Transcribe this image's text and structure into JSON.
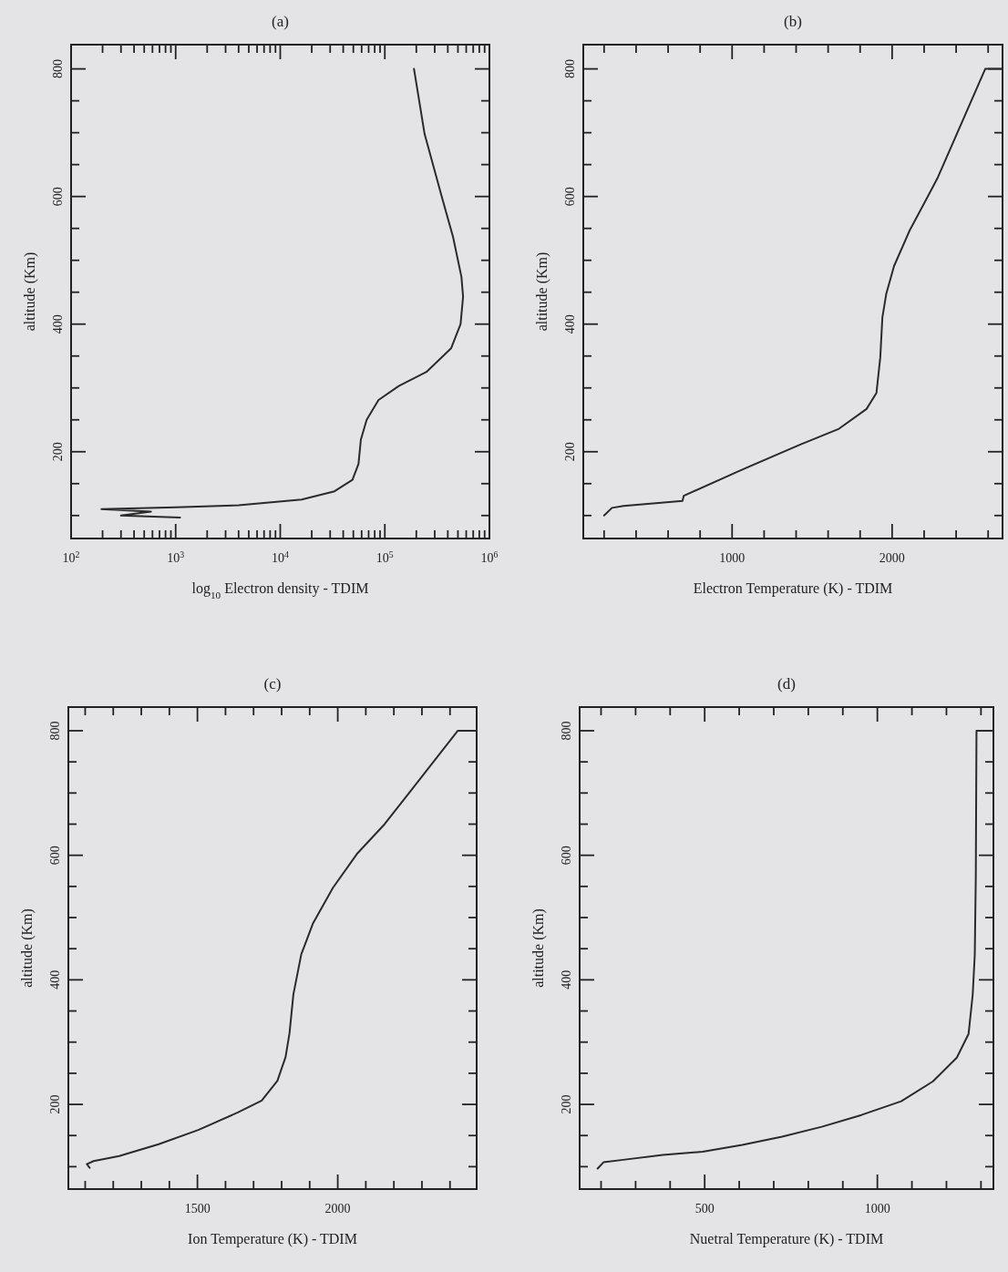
{
  "chart_data": [
    {
      "type": "line",
      "title": "(a)",
      "xlabel": "log$_{10}$ Electron density - TDIM",
      "ylabel": "altitude (Km)",
      "log": "x",
      "grid": false,
      "xlim": [
        100,
        1000000
      ],
      "ylim": [
        64,
        838
      ],
      "xticks": [
        {
          "value": 100,
          "label": "10$^{2}$"
        },
        {
          "value": 200,
          "label": null
        },
        {
          "value": 300,
          "label": null
        },
        {
          "value": 400,
          "label": null
        },
        {
          "value": 500,
          "label": null
        },
        {
          "value": 600,
          "label": null
        },
        {
          "value": 700,
          "label": null
        },
        {
          "value": 800,
          "label": null
        },
        {
          "value": 900,
          "label": null
        },
        {
          "value": 1000,
          "label": "10$^{3}$"
        },
        {
          "value": 2000,
          "label": null
        },
        {
          "value": 3000,
          "label": null
        },
        {
          "value": 4000,
          "label": null
        },
        {
          "value": 5000,
          "label": null
        },
        {
          "value": 6000,
          "label": null
        },
        {
          "value": 7000,
          "label": null
        },
        {
          "value": 8000,
          "label": null
        },
        {
          "value": 9000,
          "label": null
        },
        {
          "value": 10000,
          "label": "10$^{4}$"
        },
        {
          "value": 20000,
          "label": null
        },
        {
          "value": 30000,
          "label": null
        },
        {
          "value": 40000,
          "label": null
        },
        {
          "value": 50000,
          "label": null
        },
        {
          "value": 60000,
          "label": null
        },
        {
          "value": 70000,
          "label": null
        },
        {
          "value": 80000,
          "label": null
        },
        {
          "value": 90000,
          "label": null
        },
        {
          "value": 100000,
          "label": "10$^{5}$"
        },
        {
          "value": 200000,
          "label": null
        },
        {
          "value": 300000,
          "label": null
        },
        {
          "value": 400000,
          "label": null
        },
        {
          "value": 500000,
          "label": null
        },
        {
          "value": 600000,
          "label": null
        },
        {
          "value": 700000,
          "label": null
        },
        {
          "value": 800000,
          "label": null
        },
        {
          "value": 900000,
          "label": null
        },
        {
          "value": 1000000,
          "label": "10$^{6}$"
        }
      ],
      "yticks": [
        {
          "value": 100,
          "label": null
        },
        {
          "value": 150,
          "label": null
        },
        200,
        {
          "value": 250,
          "label": null
        },
        {
          "value": 300,
          "label": null
        },
        {
          "value": 350,
          "label": null
        },
        400,
        {
          "value": 450,
          "label": null
        },
        {
          "value": 500,
          "label": null
        },
        {
          "value": 550,
          "label": null
        },
        600,
        {
          "value": 650,
          "label": null
        },
        {
          "value": 700,
          "label": null
        },
        {
          "value": 750,
          "label": null
        },
        800
      ],
      "series": [
        {
          "color": "#2a2a2a",
          "x": [
            190000,
            240000,
            350000,
            450000,
            540000,
            560000,
            530000,
            430000,
            250000,
            136000,
            87000,
            67000,
            59000,
            56000,
            49000,
            33000,
            16000,
            4000,
            1000,
            195,
            580,
            300,
            1100
          ],
          "values": [
            800,
            698,
            600,
            536,
            474,
            443,
            400,
            362,
            325,
            303,
            281,
            250,
            219,
            181,
            156,
            138,
            125,
            116,
            113,
            110,
            106,
            100,
            97
          ]
        }
      ]
    },
    {
      "type": "line",
      "title": "(b)",
      "xlabel": "Electron Temperature (K) - TDIM",
      "ylabel": "altitude (Km)",
      "grid": false,
      "xlim": [
        70,
        2690
      ],
      "ylim": [
        64,
        838
      ],
      "xticks": [
        {
          "value": 200,
          "label": null
        },
        {
          "value": 400,
          "label": null
        },
        {
          "value": 600,
          "label": null
        },
        {
          "value": 800,
          "label": null
        },
        1000,
        {
          "value": 1200,
          "label": null
        },
        {
          "value": 1400,
          "label": null
        },
        {
          "value": 1600,
          "label": null
        },
        {
          "value": 1800,
          "label": null
        },
        2000,
        {
          "value": 2200,
          "label": null
        },
        {
          "value": 2400,
          "label": null
        },
        {
          "value": 2600,
          "label": null
        }
      ],
      "yticks": [
        {
          "value": 100,
          "label": null
        },
        {
          "value": 150,
          "label": null
        },
        200,
        {
          "value": 250,
          "label": null
        },
        {
          "value": 300,
          "label": null
        },
        {
          "value": 350,
          "label": null
        },
        400,
        {
          "value": 450,
          "label": null
        },
        {
          "value": 500,
          "label": null
        },
        {
          "value": 550,
          "label": null
        },
        600,
        {
          "value": 650,
          "label": null
        },
        {
          "value": 700,
          "label": null
        },
        {
          "value": 750,
          "label": null
        },
        800
      ],
      "series": [
        {
          "color": "#2a2a2a",
          "x": [
            200,
            249,
            322,
            690,
            698,
            1054,
            1423,
            1668,
            1840,
            1902,
            1926,
            1939,
            1963,
            2012,
            2110,
            2282,
            2582,
            2690
          ],
          "values": [
            100,
            112,
            115,
            123,
            131,
            171,
            211,
            236,
            267,
            292,
            348,
            410,
            447,
            491,
            547,
            628,
            800,
            800
          ]
        }
      ]
    },
    {
      "type": "line",
      "title": "(c)",
      "xlabel": "Ion Temperature (K) - TDIM",
      "ylabel": "altitude (Km)",
      "grid": false,
      "xlim": [
        1040,
        2495
      ],
      "ylim": [
        64,
        838
      ],
      "xticks": [
        {
          "value": 1100,
          "label": null
        },
        {
          "value": 1200,
          "label": null
        },
        {
          "value": 1300,
          "label": null
        },
        {
          "value": 1400,
          "label": null
        },
        1500,
        {
          "value": 1600,
          "label": null
        },
        {
          "value": 1700,
          "label": null
        },
        {
          "value": 1800,
          "label": null
        },
        {
          "value": 1900,
          "label": null
        },
        2000,
        {
          "value": 2100,
          "label": null
        },
        {
          "value": 2200,
          "label": null
        },
        {
          "value": 2300,
          "label": null
        },
        {
          "value": 2400,
          "label": null
        }
      ],
      "yticks": [
        {
          "value": 100,
          "label": null
        },
        {
          "value": 150,
          "label": null
        },
        200,
        {
          "value": 250,
          "label": null
        },
        {
          "value": 300,
          "label": null
        },
        {
          "value": 350,
          "label": null
        },
        400,
        {
          "value": 450,
          "label": null
        },
        {
          "value": 500,
          "label": null
        },
        {
          "value": 550,
          "label": null
        },
        600,
        {
          "value": 650,
          "label": null
        },
        {
          "value": 700,
          "label": null
        },
        {
          "value": 750,
          "label": null
        },
        800
      ],
      "series": [
        {
          "color": "#2a2a2a",
          "x": [
            1116,
            1106,
            1130,
            1221,
            1362,
            1503,
            1644,
            1729,
            1785,
            1814,
            1828,
            1842,
            1870,
            1912,
            1983,
            2068,
            2167,
            2266,
            2428,
            2495
          ],
          "values": [
            98,
            104,
            109,
            117,
            136,
            159,
            187,
            206,
            238,
            276,
            314,
            377,
            441,
            491,
            548,
            602,
            650,
            707,
            800,
            800
          ]
        }
      ]
    },
    {
      "type": "line",
      "title": "(d)",
      "xlabel": "Nuetral Temperature (K) - TDIM",
      "ylabel": "altitude (Km)",
      "grid": false,
      "xlim": [
        138,
        1336
      ],
      "ylim": [
        64,
        838
      ],
      "xticks": [
        {
          "value": 200,
          "label": null
        },
        {
          "value": 300,
          "label": null
        },
        {
          "value": 400,
          "label": null
        },
        500,
        {
          "value": 600,
          "label": null
        },
        {
          "value": 700,
          "label": null
        },
        {
          "value": 800,
          "label": null
        },
        {
          "value": 900,
          "label": null
        },
        1000,
        {
          "value": 1100,
          "label": null
        },
        {
          "value": 1200,
          "label": null
        },
        {
          "value": 1300,
          "label": null
        }
      ],
      "yticks": [
        {
          "value": 100,
          "label": null
        },
        {
          "value": 150,
          "label": null
        },
        200,
        {
          "value": 250,
          "label": null
        },
        {
          "value": 300,
          "label": null
        },
        {
          "value": 350,
          "label": null
        },
        400,
        {
          "value": 450,
          "label": null
        },
        {
          "value": 500,
          "label": null
        },
        {
          "value": 550,
          "label": null
        },
        600,
        {
          "value": 650,
          "label": null
        },
        {
          "value": 700,
          "label": null
        },
        {
          "value": 750,
          "label": null
        },
        800
      ],
      "series": [
        {
          "color": "#2a2a2a",
          "x": [
            190,
            207,
            264,
            379,
            494,
            609,
            724,
            839,
            954,
            1069,
            1161,
            1230,
            1264,
            1276,
            1282,
            1285,
            1287,
            1336
          ],
          "values": [
            97,
            107,
            111,
            119,
            124,
            135,
            148,
            164,
            183,
            205,
            237,
            275,
            313,
            376,
            440,
            566,
            800,
            800
          ]
        }
      ]
    }
  ]
}
